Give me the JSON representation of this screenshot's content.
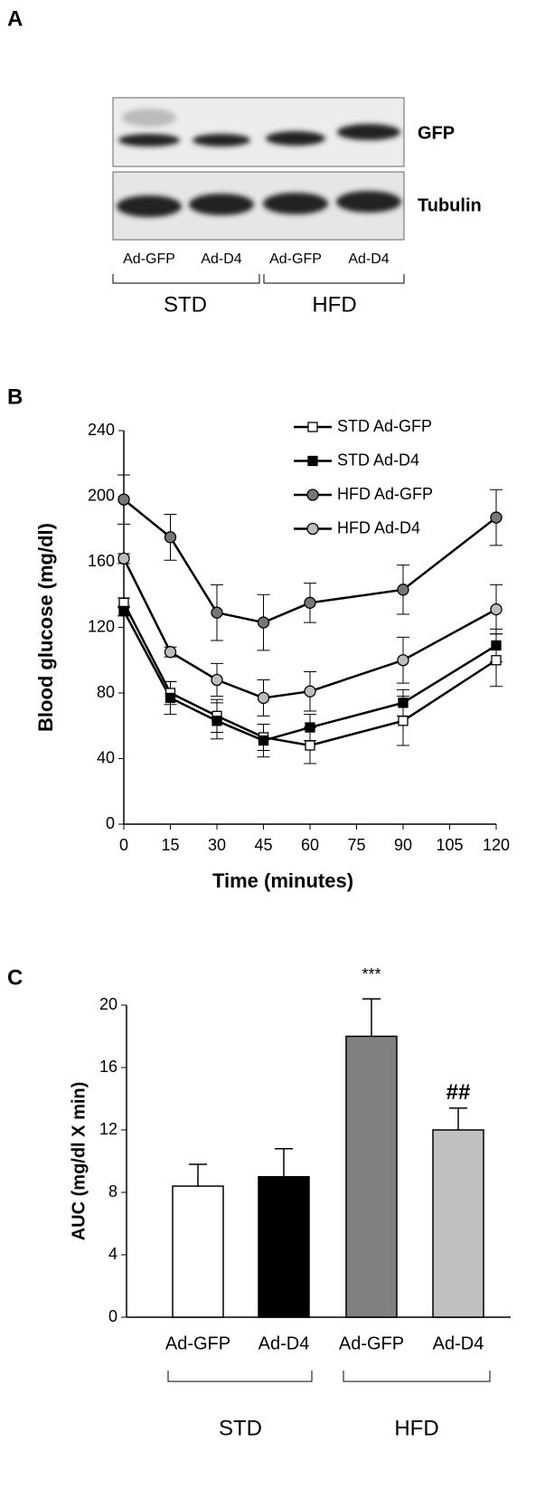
{
  "panel_a": {
    "label": "A",
    "rows": [
      "GFP",
      "Tubulin"
    ],
    "lanes": [
      "Ad-GFP",
      "Ad-D4",
      "Ad-GFP",
      "Ad-D4"
    ],
    "groups": [
      "STD",
      "HFD"
    ]
  },
  "chart_data": [
    {
      "type": "line",
      "panel_label": "B",
      "xlabel": "Time (minutes)",
      "ylabel": "Blood glucose (mg/dl)",
      "x": [
        0,
        15,
        30,
        45,
        60,
        90,
        120
      ],
      "xlim": [
        0,
        120
      ],
      "xticks": [
        0,
        15,
        30,
        45,
        60,
        75,
        90,
        105,
        120
      ],
      "ylim": [
        0,
        240
      ],
      "yticks": [
        0,
        40,
        80,
        120,
        160,
        200,
        240
      ],
      "legend": "upper right",
      "series": [
        {
          "name": "STD Ad-GFP",
          "color": "#000000",
          "marker": "square",
          "marker_fill": "#ffffff",
          "values": [
            135,
            80,
            66,
            53,
            48,
            63,
            100
          ],
          "errors": [
            3,
            7,
            10,
            8,
            11,
            15,
            16
          ]
        },
        {
          "name": "STD Ad-D4",
          "color": "#000000",
          "marker": "square",
          "marker_fill": "#000000",
          "values": [
            130,
            77,
            63,
            51,
            59,
            74,
            109
          ],
          "errors": [
            3,
            10,
            11,
            10,
            8,
            8,
            10
          ]
        },
        {
          "name": "HFD Ad-GFP",
          "color": "#000000",
          "marker": "circle",
          "marker_fill": "#777777",
          "values": [
            198,
            175,
            129,
            123,
            135,
            143,
            187
          ],
          "errors": [
            15,
            14,
            17,
            17,
            12,
            15,
            17
          ]
        },
        {
          "name": "HFD Ad-D4",
          "color": "#000000",
          "marker": "circle",
          "marker_fill": "#bdbdbd",
          "values": [
            162,
            105,
            88,
            77,
            81,
            100,
            131
          ],
          "errors": [
            3,
            3,
            10,
            11,
            12,
            14,
            15
          ]
        }
      ]
    },
    {
      "type": "bar",
      "panel_label": "C",
      "ylabel": "AUC (mg/dl X min)",
      "categories": [
        "Ad-GFP",
        "Ad-D4",
        "Ad-GFP",
        "Ad-D4"
      ],
      "groups": [
        "STD",
        "HFD"
      ],
      "values": [
        8.4,
        9.0,
        18.0,
        12.0
      ],
      "errors": [
        1.4,
        1.8,
        2.4,
        1.4
      ],
      "colors": [
        "#ffffff",
        "#000000",
        "#808080",
        "#c0c0c0"
      ],
      "annotations": [
        null,
        null,
        "***",
        "##"
      ],
      "ylim": [
        0,
        20
      ],
      "yticks": [
        0,
        4,
        8,
        12,
        16,
        20
      ]
    }
  ]
}
